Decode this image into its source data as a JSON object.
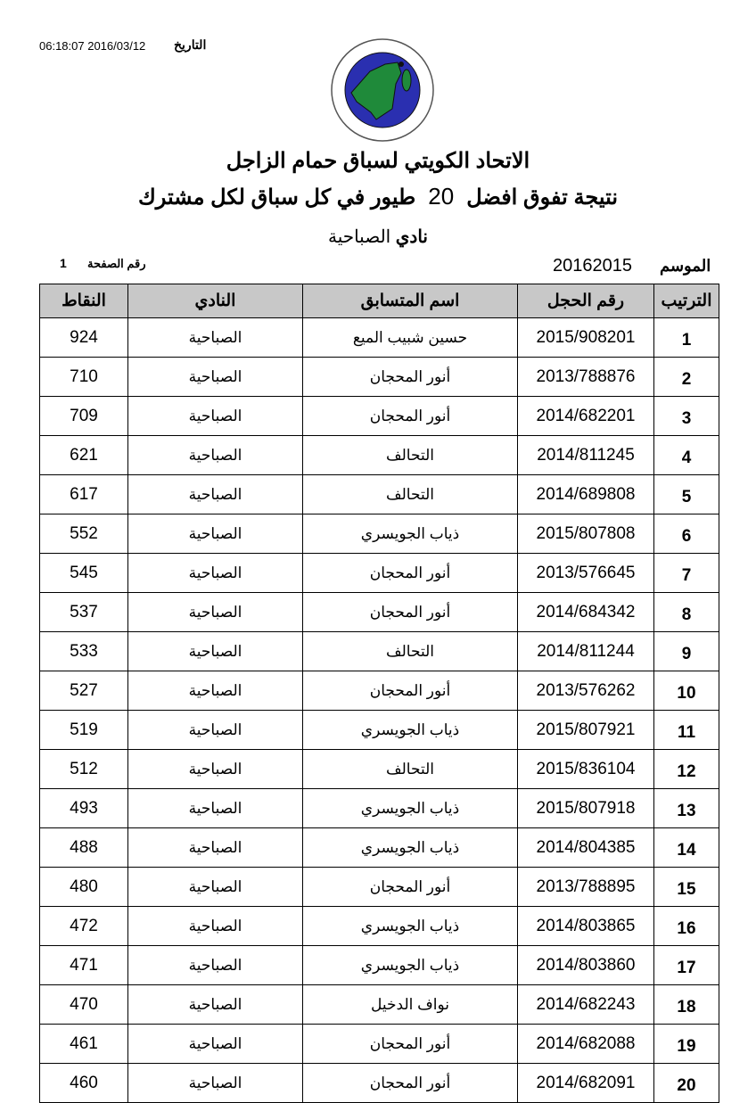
{
  "header": {
    "date_label": "التاريخ",
    "datetime": "06:18:07 2016/03/12",
    "logo_text": "الاتحاد الكويتي لسباق حمام الزاجل KUWAIT FEDRATION FOR RACING PIGEON",
    "title": "الاتحاد الكويتي لسباق حمام الزاجل",
    "subtitle_part1": "نتيجة تفوق  افضل",
    "subtitle_number": "20",
    "subtitle_part2": "طيور في كل سباق لكل مشترك",
    "club_label": "نادي",
    "club_name": "الصباحية",
    "season_label": "الموسم",
    "season_value": "20162015",
    "page_label": "رقم الصفحة",
    "page_value": "1"
  },
  "colors": {
    "logo_blue": "#2a2fb0",
    "logo_green": "#1f8a3a",
    "header_bg": "#c8c8c8"
  },
  "table": {
    "columns": [
      "الترتيب",
      "رقم الحجل",
      "اسم المتسابق",
      "النادي",
      "النقاط"
    ],
    "rows": [
      [
        "1",
        "2015/908201",
        "حسين شبيب الميع",
        "الصباحية",
        "924"
      ],
      [
        "2",
        "2013/788876",
        "أنور المحجان",
        "الصباحية",
        "710"
      ],
      [
        "3",
        "2014/682201",
        "أنور المحجان",
        "الصباحية",
        "709"
      ],
      [
        "4",
        "2014/811245",
        "التحالف",
        "الصباحية",
        "621"
      ],
      [
        "5",
        "2014/689808",
        "التحالف",
        "الصباحية",
        "617"
      ],
      [
        "6",
        "2015/807808",
        "ذياب الجويسري",
        "الصباحية",
        "552"
      ],
      [
        "7",
        "2013/576645",
        "أنور المحجان",
        "الصباحية",
        "545"
      ],
      [
        "8",
        "2014/684342",
        "أنور المحجان",
        "الصباحية",
        "537"
      ],
      [
        "9",
        "2014/811244",
        "التحالف",
        "الصباحية",
        "533"
      ],
      [
        "10",
        "2013/576262",
        "أنور المحجان",
        "الصباحية",
        "527"
      ],
      [
        "11",
        "2015/807921",
        "ذياب الجويسري",
        "الصباحية",
        "519"
      ],
      [
        "12",
        "2015/836104",
        "التحالف",
        "الصباحية",
        "512"
      ],
      [
        "13",
        "2015/807918",
        "ذياب الجويسري",
        "الصباحية",
        "493"
      ],
      [
        "14",
        "2014/804385",
        "ذياب الجويسري",
        "الصباحية",
        "488"
      ],
      [
        "15",
        "2013/788895",
        "أنور المحجان",
        "الصباحية",
        "480"
      ],
      [
        "16",
        "2014/803865",
        "ذياب الجويسري",
        "الصباحية",
        "472"
      ],
      [
        "17",
        "2014/803860",
        "ذياب الجويسري",
        "الصباحية",
        "471"
      ],
      [
        "18",
        "2014/682243",
        "نواف الدخيل",
        "الصباحية",
        "470"
      ],
      [
        "19",
        "2014/682088",
        "أنور المحجان",
        "الصباحية",
        "461"
      ],
      [
        "20",
        "2014/682091",
        "أنور المحجان",
        "الصباحية",
        "460"
      ]
    ]
  }
}
